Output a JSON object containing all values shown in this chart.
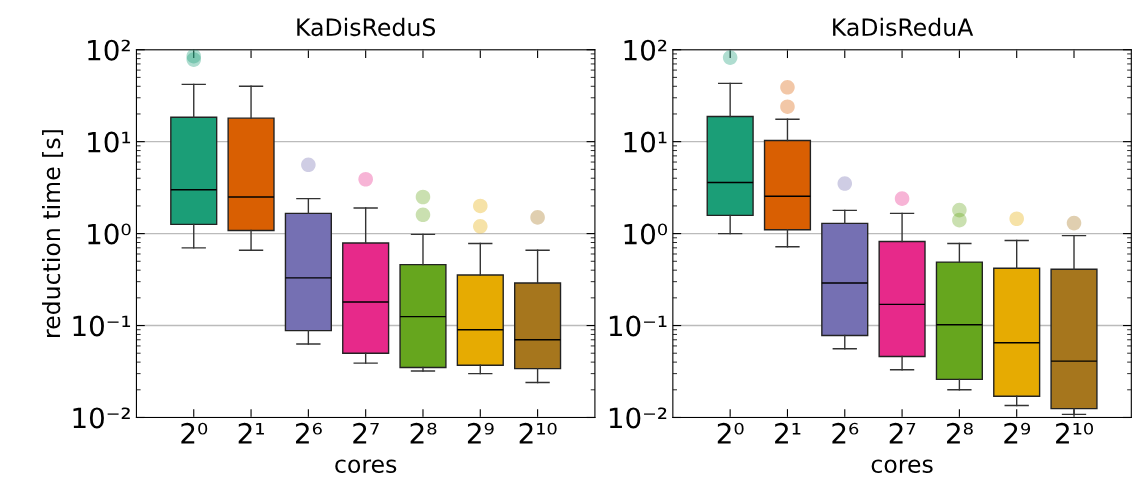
{
  "chart_data": [
    {
      "type": "box",
      "title": "KaDisReduS",
      "xlabel": "cores",
      "ylabel": "reduction time [s]",
      "categories": [
        "2⁰",
        "2¹",
        "2⁶",
        "2⁷",
        "2⁸",
        "2⁹",
        "2¹⁰"
      ],
      "colors": [
        "#1b9e77",
        "#d95f02",
        "#7570b3",
        "#e7298a",
        "#66a61e",
        "#e6ab02",
        "#a6761d"
      ],
      "boxes": [
        {
          "low": 0.7,
          "q1": 1.26,
          "median": 3.0,
          "q3": 18.4,
          "high": 42,
          "outliers": [
            85,
            78
          ]
        },
        {
          "low": 0.66,
          "q1": 1.08,
          "median": 2.5,
          "q3": 18,
          "high": 40
        },
        {
          "low": 0.063,
          "q1": 0.088,
          "median": 0.33,
          "q3": 1.66,
          "high": 2.4,
          "outliers": [
            5.6
          ]
        },
        {
          "low": 0.039,
          "q1": 0.05,
          "median": 0.18,
          "q3": 0.79,
          "high": 1.9,
          "outliers": [
            3.9
          ]
        },
        {
          "low": 0.032,
          "q1": 0.035,
          "median": 0.125,
          "q3": 0.46,
          "high": 0.98,
          "outliers": [
            2.5,
            1.6
          ]
        },
        {
          "low": 0.03,
          "q1": 0.037,
          "median": 0.09,
          "q3": 0.355,
          "high": 0.78,
          "outliers": [
            2.0,
            1.2
          ]
        },
        {
          "low": 0.024,
          "q1": 0.034,
          "median": 0.07,
          "q3": 0.29,
          "high": 0.66,
          "outliers": [
            1.5
          ]
        }
      ],
      "log": "y",
      "ylim": [
        0.01,
        100
      ],
      "yticks": [
        {
          "value": 0.01,
          "label": "10⁻²"
        },
        {
          "value": 0.1,
          "label": "10⁻¹"
        },
        {
          "value": 1,
          "label": "10⁰"
        },
        {
          "value": 10,
          "label": "10¹"
        },
        {
          "value": 100,
          "label": "10²"
        }
      ],
      "grid": "y",
      "legend": false
    },
    {
      "type": "box",
      "title": "KaDisReduA",
      "xlabel": "cores",
      "categories": [
        "2⁰",
        "2¹",
        "2⁶",
        "2⁷",
        "2⁸",
        "2⁹",
        "2¹⁰"
      ],
      "colors": [
        "#1b9e77",
        "#d95f02",
        "#7570b3",
        "#e7298a",
        "#66a61e",
        "#e6ab02",
        "#a6761d"
      ],
      "boxes": [
        {
          "low": 1.0,
          "q1": 1.58,
          "median": 3.6,
          "q3": 18.8,
          "high": 43,
          "outliers": [
            82
          ]
        },
        {
          "low": 0.72,
          "q1": 1.1,
          "median": 2.55,
          "q3": 10.3,
          "high": 17.5,
          "outliers": [
            39,
            24
          ]
        },
        {
          "low": 0.056,
          "q1": 0.078,
          "median": 0.29,
          "q3": 1.29,
          "high": 1.79,
          "outliers": [
            3.5
          ]
        },
        {
          "low": 0.033,
          "q1": 0.046,
          "median": 0.17,
          "q3": 0.82,
          "high": 1.66,
          "outliers": [
            2.4
          ]
        },
        {
          "low": 0.02,
          "q1": 0.026,
          "median": 0.102,
          "q3": 0.49,
          "high": 0.78,
          "outliers": [
            1.8,
            1.4
          ]
        },
        {
          "low": 0.0135,
          "q1": 0.017,
          "median": 0.065,
          "q3": 0.42,
          "high": 0.84,
          "outliers": [
            1.45
          ]
        },
        {
          "low": 0.0108,
          "q1": 0.0125,
          "median": 0.041,
          "q3": 0.41,
          "high": 0.95,
          "outliers": [
            1.3
          ]
        }
      ],
      "log": "y",
      "ylim": [
        0.01,
        100
      ],
      "yticks": [
        {
          "value": 0.01,
          "label": "10⁻²"
        },
        {
          "value": 0.1,
          "label": "10⁻¹"
        },
        {
          "value": 1,
          "label": "10⁰"
        },
        {
          "value": 10,
          "label": "10¹"
        },
        {
          "value": 100,
          "label": "10²"
        }
      ],
      "grid": "y",
      "legend": false
    }
  ]
}
